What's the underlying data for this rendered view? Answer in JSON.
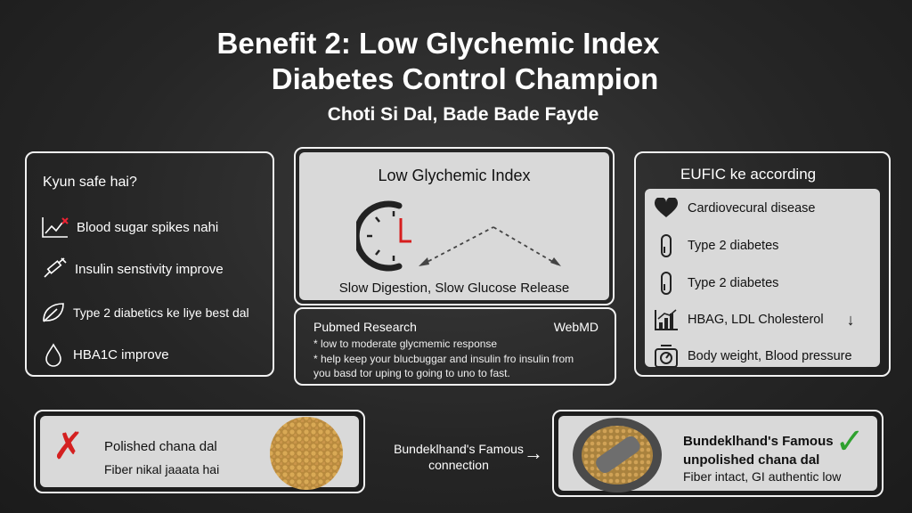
{
  "header": {
    "line1": "Benefit 2: Low Glychemic Index",
    "line2": "Diabetes Control Champion",
    "tagline": "Choti Si Dal, Bade Bade Fayde"
  },
  "left_panel": {
    "heading": "Kyun safe hai?",
    "items": [
      {
        "icon": "chart-down-icon",
        "label": "Blood sugar spikes nahi"
      },
      {
        "icon": "syringe-icon",
        "label": "Insulin senstivity improve"
      },
      {
        "icon": "leaf-icon",
        "label": "Type 2 diabetics ke liye best dal"
      },
      {
        "icon": "drop-icon",
        "label": "HBA1C improve"
      }
    ]
  },
  "gi_panel": {
    "title": "Low Glychemic Index",
    "caption": "Slow Digestion, Slow Glucose Release"
  },
  "research_panel": {
    "source1": "Pubmed Research",
    "source2": "WebMD",
    "lines": [
      "* low to moderate glycmemic response",
      "* help keep your blucbuggar and insulin fro insulin from",
      "you basd tor uping to going to uno to fast."
    ]
  },
  "right_panel": {
    "heading": "EUFIC ke according",
    "items": [
      {
        "icon": "heart-icon",
        "label": "Cardiovecural disease"
      },
      {
        "icon": "capsule-icon",
        "label": "Type 2 diabetes"
      },
      {
        "icon": "capsule-icon",
        "label": "Type 2 diabetes"
      },
      {
        "icon": "bar-chart-icon",
        "label": "HBAG, LDL Cholesterol",
        "arrow": "↓"
      },
      {
        "icon": "scale-icon",
        "label": "Body weight, Blood pressure"
      }
    ]
  },
  "polished_card": {
    "title": "Polished chana dal",
    "subtitle": "Fiber nikal jaaata hai",
    "mark": "✗"
  },
  "connection": {
    "line1": "Bundeklhand's Famous",
    "line2": "connection",
    "arrow": "→"
  },
  "unpolished_card": {
    "title": "Bundeklhand's Famous unpolished chana dal",
    "subtitle": "Fiber intact, GI authentic low",
    "mark": "✓"
  },
  "colors": {
    "background": "#262626",
    "panel_light": "#d9d9d9",
    "cross_red": "#d42020",
    "check_green": "#2fa12f",
    "clock_red": "#d61e1e"
  }
}
